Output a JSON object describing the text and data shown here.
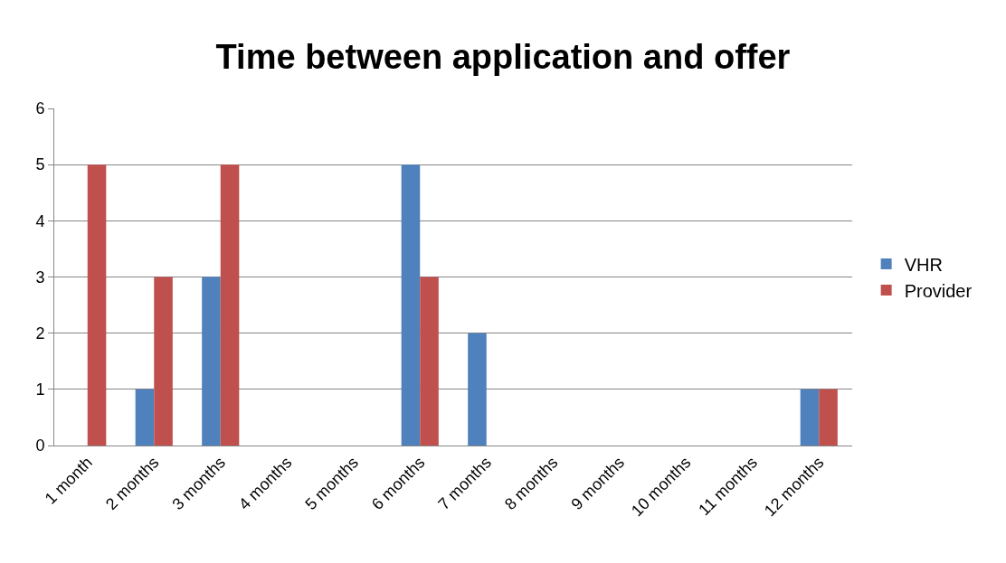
{
  "chart_data": {
    "type": "bar",
    "title": "Time between application and offer",
    "categories": [
      "1 month",
      "2 months",
      "3 months",
      "4 months",
      "5 months",
      "6 months",
      "7 months",
      "8 months",
      "9 months",
      "10 months",
      "11 months",
      "12 months"
    ],
    "series": [
      {
        "name": "VHR",
        "color": "#4f81bd",
        "values": [
          0,
          1,
          3,
          0,
          0,
          5,
          2,
          0,
          0,
          0,
          0,
          1
        ]
      },
      {
        "name": "Provider",
        "color": "#c0504d",
        "values": [
          5,
          3,
          5,
          0,
          0,
          3,
          0,
          0,
          0,
          0,
          0,
          1
        ]
      }
    ],
    "ylim": [
      0,
      6
    ],
    "yticks": [
      0,
      1,
      2,
      3,
      4,
      5,
      6
    ],
    "grid": "y",
    "legend": "right"
  }
}
